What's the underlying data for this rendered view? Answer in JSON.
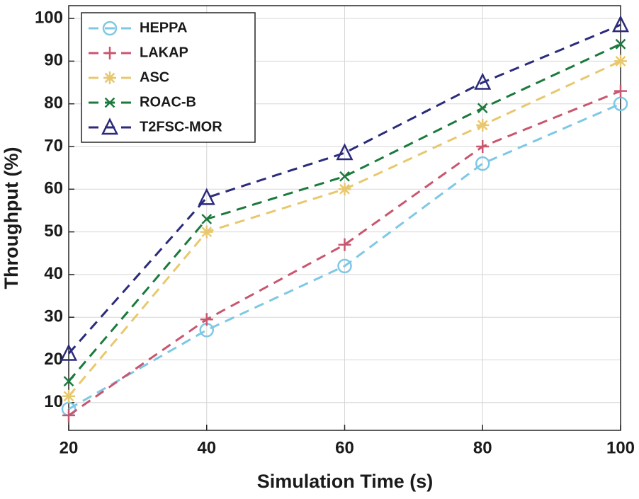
{
  "chart_data": {
    "type": "line",
    "xlabel": "Simulation Time (s)",
    "ylabel": "Throughput (%)",
    "x": [
      20,
      40,
      60,
      80,
      100
    ],
    "series": [
      {
        "name": "HEPPA",
        "color": "#7ec8e6",
        "marker": "circle",
        "values": [
          8.5,
          27,
          42,
          66,
          80
        ]
      },
      {
        "name": "LAKAP",
        "color": "#c9566f",
        "marker": "plus",
        "values": [
          7,
          29.5,
          47,
          70,
          83
        ]
      },
      {
        "name": "ASC",
        "color": "#e8c86e",
        "marker": "asterisk",
        "values": [
          11.5,
          50,
          60,
          75,
          90
        ]
      },
      {
        "name": "ROAC-B",
        "color": "#1b7a3c",
        "marker": "x",
        "values": [
          15,
          53,
          63,
          79,
          94
        ]
      },
      {
        "name": "T2FSC-MOR",
        "color": "#2b2b7c",
        "marker": "triangle",
        "values": [
          21.5,
          58,
          68.5,
          85,
          98.5
        ]
      }
    ],
    "xlim": [
      20,
      100
    ],
    "xticks": [
      20,
      40,
      60,
      80,
      100
    ],
    "ylim": [
      3.5,
      103
    ],
    "yticks": [
      10,
      20,
      30,
      40,
      50,
      60,
      70,
      80,
      90,
      100
    ],
    "grid": true,
    "legend": "upper left"
  }
}
